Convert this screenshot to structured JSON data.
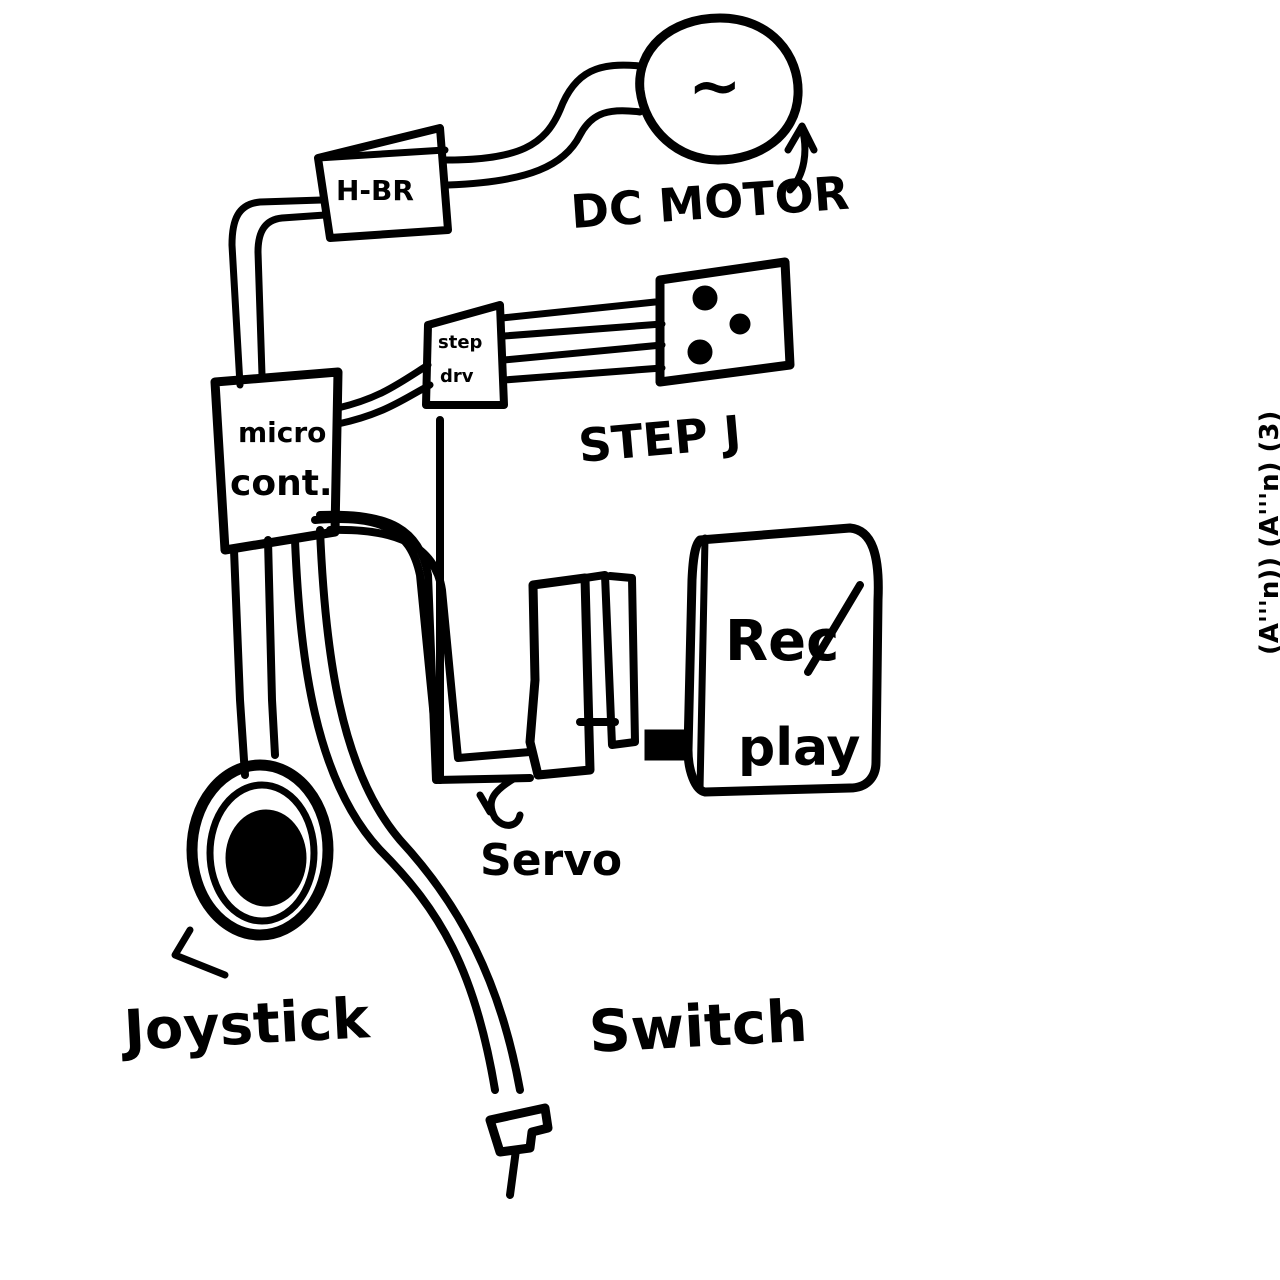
{
  "diagram": {
    "ink_color": "#000000",
    "background": "#ffffff",
    "labels": {
      "h_bridge": "H-BR",
      "motor_symbol": "~",
      "dc_motor": "DC MOTOR",
      "step_driver_line1": "step",
      "step_driver_line2": "drv",
      "stepper": "STEP J",
      "micro_line1": "micro",
      "micro_line2": "cont.",
      "rec_line1": "Rec",
      "rec_line2": "play",
      "servo": "Servo",
      "joystick": "Joystick",
      "switch": "Switch"
    },
    "edge_text": "(A'''n))  (A'''n) (3)"
  }
}
